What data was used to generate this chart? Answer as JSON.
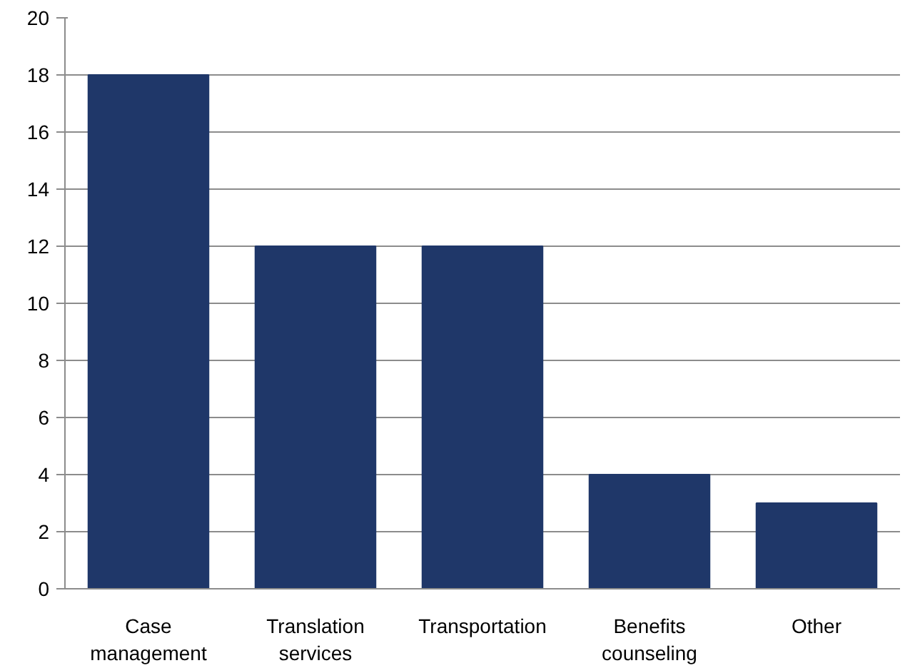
{
  "chart_data": {
    "type": "bar",
    "categories": [
      "Case management",
      "Translation services",
      "Transportation",
      "Benefits counseling",
      "Other"
    ],
    "values": [
      18,
      12,
      12,
      4,
      3
    ],
    "color": "#1f3769",
    "ylim": [
      0,
      20
    ],
    "yticks": [
      0,
      2,
      4,
      6,
      8,
      10,
      12,
      14,
      16,
      18,
      20
    ],
    "grid": "y"
  }
}
